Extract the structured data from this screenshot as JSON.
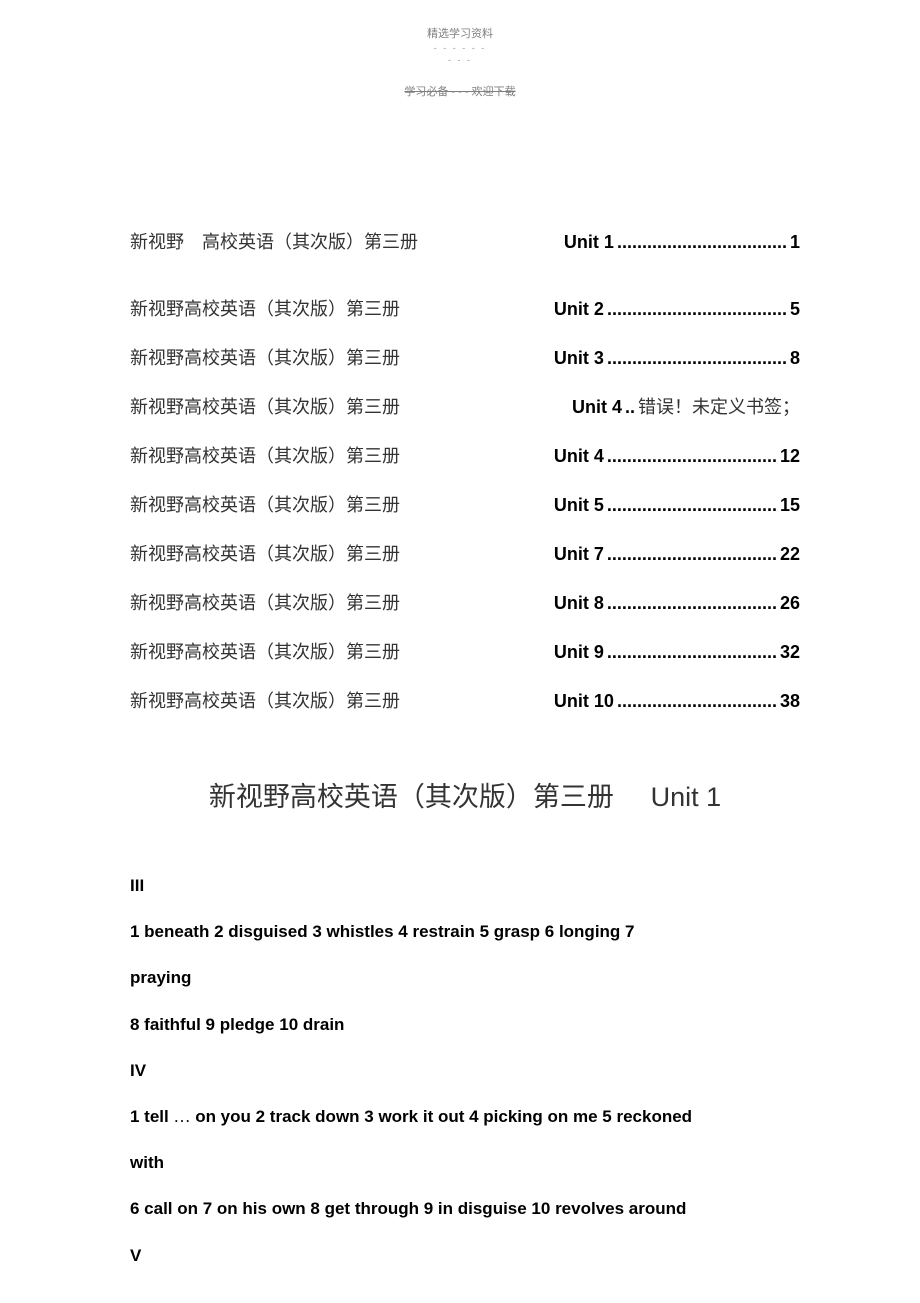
{
  "header": {
    "small_text": "精选学习资料",
    "dashes": "- - - - - -",
    "dashes2": "- - -",
    "strike_text": "学习必备 - - - 欢迎下载"
  },
  "toc": {
    "rows": [
      {
        "left": "新视野　高校英语（其次版）第三册",
        "unit": "Unit 1",
        "dots": "..................................",
        "page": "1"
      },
      {
        "left": "新视野高校英语（其次版）第三册",
        "unit": "Unit 2",
        "dots": "....................................",
        "page": "5"
      },
      {
        "left": "新视野高校英语（其次版）第三册",
        "unit": "Unit 3",
        "dots": "....................................",
        "page": "8"
      },
      {
        "left": "新视野高校英语（其次版）第三册",
        "unit": "Unit 4",
        "dots": "..",
        "error": "错误！未定义书签；",
        "page": ""
      },
      {
        "left": "新视野高校英语（其次版）第三册",
        "unit": "Unit 4",
        "dots": "..................................",
        "page": "12"
      },
      {
        "left": "新视野高校英语（其次版）第三册",
        "unit": "Unit 5",
        "dots": "..................................",
        "page": "15"
      },
      {
        "left": "新视野高校英语（其次版）第三册",
        "unit": "Unit 7",
        "dots": "..................................",
        "page": "22"
      },
      {
        "left": "新视野高校英语（其次版）第三册",
        "unit": "Unit 8",
        "dots": "..................................",
        "page": "26"
      },
      {
        "left": "新视野高校英语（其次版）第三册",
        "unit": "Unit 9",
        "dots": "..................................",
        "page": "32"
      },
      {
        "left": "新视野高校英语（其次版）第三册",
        "unit": "Unit 10",
        "dots": "................................",
        "page": "38"
      }
    ]
  },
  "main_title": {
    "chinese": "新视野高校英语（其次版）第三册",
    "unit": "Unit 1"
  },
  "body": {
    "lines": [
      {
        "text": "III",
        "has_ellipsis": false
      },
      {
        "text": "1 beneath 2 disguised 3 whistles 4 restrain 5 grasp 6 longing 7",
        "has_ellipsis": false
      },
      {
        "text": "praying",
        "has_ellipsis": false
      },
      {
        "text": "8 faithful 9 pledge 10 drain",
        "has_ellipsis": false
      },
      {
        "text": "IV",
        "has_ellipsis": false
      },
      {
        "text_before": "1 tell ",
        "ellipsis": "…",
        "text_after": " on you 2 track down 3 work it out 4 picking on me 5 reckoned",
        "has_ellipsis": true
      },
      {
        "text": "with",
        "has_ellipsis": false
      },
      {
        "text": "6 call on 7 on his own 8 get through 9 in disguise 10 revolves around",
        "has_ellipsis": false
      },
      {
        "text": "V",
        "has_ellipsis": false
      }
    ]
  }
}
